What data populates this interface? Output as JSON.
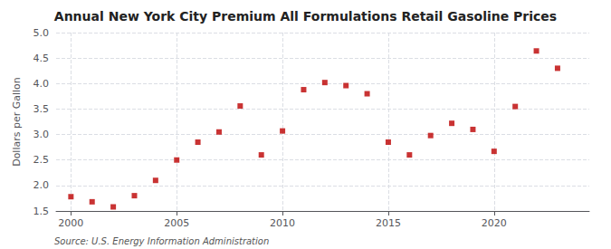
{
  "chart_data": {
    "type": "scatter",
    "title": "Annual New York City Premium All Formulations Retail Gasoline Prices",
    "ylabel": "Dollars per Gallon",
    "annotations": [
      "Source: U.S. Energy Information Administration"
    ],
    "x": [
      2000,
      2001,
      2002,
      2003,
      2004,
      2005,
      2006,
      2007,
      2008,
      2009,
      2010,
      2011,
      2012,
      2013,
      2014,
      2015,
      2016,
      2017,
      2018,
      2019,
      2020,
      2021,
      2022,
      2023
    ],
    "values": [
      1.78,
      1.68,
      1.58,
      1.8,
      2.1,
      2.5,
      2.85,
      3.05,
      3.56,
      2.6,
      3.07,
      3.88,
      4.02,
      3.96,
      3.8,
      2.85,
      2.6,
      2.98,
      3.22,
      3.1,
      2.67,
      3.55,
      4.64,
      4.3
    ],
    "color": "#bb0000",
    "marker": "square",
    "xlim": [
      1999.3,
      2024.5
    ],
    "ylim": [
      1.5,
      5.0
    ],
    "xticks": [
      2000,
      2005,
      2010,
      2015,
      2020
    ],
    "yticks": [
      1.5,
      {
        "value": 2.0,
        "label": "2.0"
      },
      2.5,
      {
        "value": 3.0,
        "label": "3.0"
      },
      3.5,
      {
        "value": 4.0,
        "label": "4.0"
      },
      4.5,
      {
        "value": 5.0,
        "label": "5.0"
      }
    ],
    "grid": true
  }
}
